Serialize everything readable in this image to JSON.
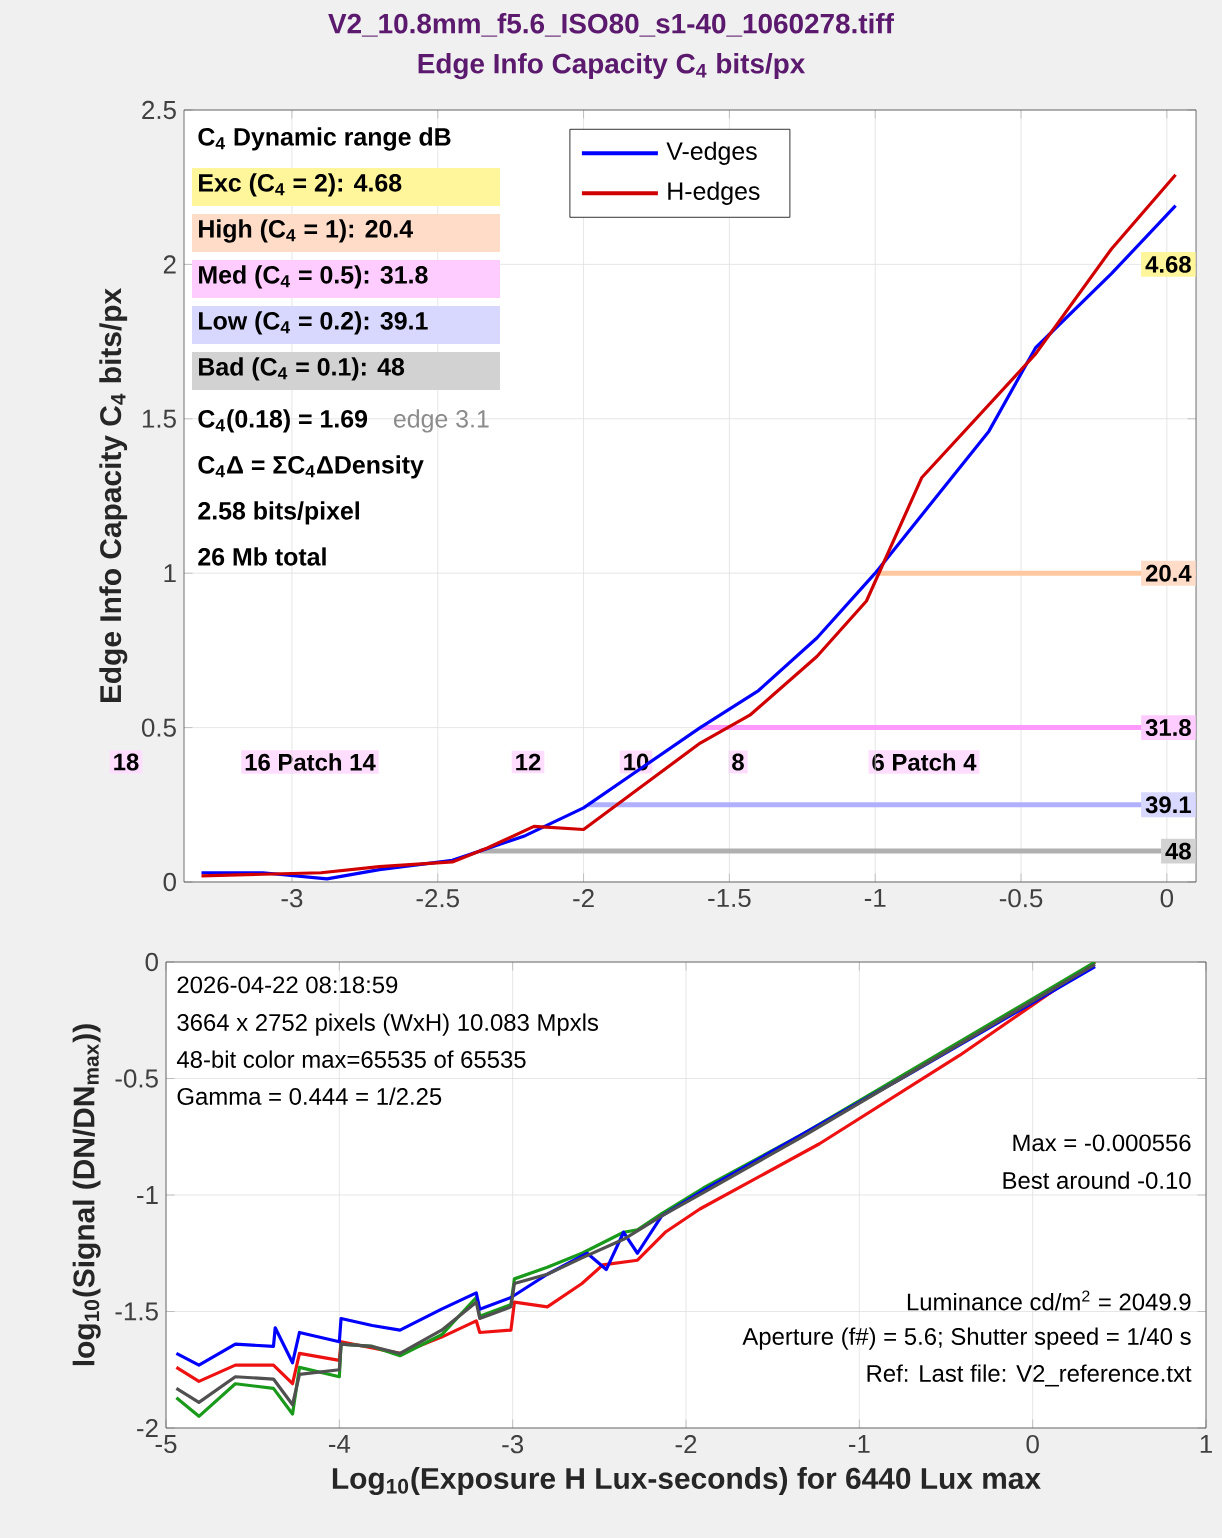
{
  "chart_data": [
    {
      "type": "line",
      "title": "V2_10.8mm_f5.6_ISO80_s1-40_1060278.tiff",
      "subtitle": "Edge Info Capacity C$_{4}$ bits/px",
      "ylabel": "Edge Info Capacity C$_{4}$ bits/px",
      "xlim": [
        -3.37,
        0.1
      ],
      "ylim": [
        0,
        2.5
      ],
      "xticks": [
        -3,
        -2.5,
        -2,
        -1.5,
        -1,
        -0.5,
        0
      ],
      "yticks": [
        0,
        0.5,
        1,
        1.5,
        2,
        2.5
      ],
      "grid": true,
      "legend": "top",
      "series": [
        {
          "name": "V-edges",
          "color": "#0000ff",
          "x": [
            -3.31,
            -3.1,
            -2.88,
            -2.7,
            -2.45,
            -2.2,
            -2.0,
            -1.8,
            -1.6,
            -1.4,
            -1.2,
            -1.0,
            -0.61,
            -0.45,
            -0.19,
            0.03
          ],
          "values": [
            0.03,
            0.03,
            0.01,
            0.04,
            0.07,
            0.15,
            0.24,
            0.37,
            0.5,
            0.62,
            0.79,
            1.0,
            1.46,
            1.73,
            1.97,
            2.19
          ]
        },
        {
          "name": "H-edges",
          "color": "#d00000",
          "x": [
            -3.31,
            -3.1,
            -2.9,
            -2.7,
            -2.45,
            -2.33,
            -2.17,
            -2.0,
            -1.8,
            -1.6,
            -1.43,
            -1.2,
            -1.03,
            -0.84,
            -0.45,
            -0.19,
            0.03
          ],
          "values": [
            0.02,
            0.025,
            0.03,
            0.05,
            0.065,
            0.11,
            0.18,
            0.17,
            0.31,
            0.45,
            0.54,
            0.73,
            0.91,
            1.31,
            1.71,
            2.05,
            2.29
          ]
        }
      ],
      "ref_lines": [
        {
          "axis": "y",
          "value": 1,
          "color": "#ffc8a0"
        },
        {
          "axis": "y",
          "value": 0.5,
          "color": "#ff99ff"
        },
        {
          "axis": "y",
          "value": 0.25,
          "color": "#b0b0ff"
        },
        {
          "axis": "y",
          "value": 0.1,
          "color": "#b0b0b0"
        }
      ],
      "annotations": [
        "C$_{4}$ Dynamic range dB",
        "Exc  (C$_{4}$ = 2):   4.68",
        "High (C$_{4}$ = 1):   20.4",
        "Med  (C$_{4}$ = 0.5):  31.8",
        "Low  (C$_{4}$ = 0.2):  39.1",
        "Bad  (C$_{4}$ = 0.1):   48",
        "C$_{4}$(0.18) = 1.69",
        "edge 3.1",
        "C$_{4}$Δ = ΣC$_{4}$ΔDensity",
        "2.58 bits/pixel",
        "26 Mb total",
        {
          "text": "4.68",
          "y": 2
        },
        {
          "text": "20.4",
          "y": 1
        },
        {
          "text": "31.8",
          "y": 0.5
        },
        {
          "text": "39.1",
          "y": 0.25
        },
        {
          "text": "48",
          "y": 0.1
        },
        "18",
        "16 Patch 14",
        "12",
        "10",
        "8",
        "6 Patch 4"
      ]
    },
    {
      "type": "line",
      "xlabel": "Log$_{10}$(Exposure H Lux-seconds)  for 6440 Lux max",
      "ylabel": "log$_{10}$(Signal (DN/DN$_{max}$))",
      "xlim": [
        -5,
        1
      ],
      "ylim": [
        -2,
        0
      ],
      "xticks": [
        -5,
        -4,
        -3,
        -2,
        -1,
        0,
        1
      ],
      "yticks": [
        -2,
        -1.5,
        -1,
        -0.5,
        0
      ],
      "grid": true,
      "series": [
        {
          "color": "#ee1111",
          "x": [
            -4.94,
            -4.81,
            -4.6,
            -4.38,
            -4.27,
            -4.23,
            -4.0,
            -3.99,
            -3.65,
            -3.41,
            -3.21,
            -3.19,
            -3.01,
            -2.99,
            -2.8,
            -2.6,
            -2.48,
            -2.28,
            -2.12,
            -1.92,
            -1.23,
            -0.42,
            0.36
          ],
          "values": [
            -1.74,
            -1.8,
            -1.73,
            -1.73,
            -1.81,
            -1.68,
            -1.71,
            -1.63,
            -1.68,
            -1.61,
            -1.54,
            -1.59,
            -1.58,
            -1.46,
            -1.48,
            -1.38,
            -1.3,
            -1.28,
            -1.16,
            -1.06,
            -0.78,
            -0.4,
            0.0
          ]
        },
        {
          "color": "#1a9a1a",
          "x": [
            -4.94,
            -4.81,
            -4.6,
            -4.38,
            -4.27,
            -4.23,
            -4.0,
            -3.99,
            -3.81,
            -3.65,
            -3.41,
            -3.21,
            -3.19,
            -3.01,
            -2.99,
            -2.8,
            -2.6,
            -2.36,
            -2.28,
            -2.14,
            -1.9,
            -1.33,
            0.36
          ],
          "values": [
            -1.87,
            -1.95,
            -1.81,
            -1.83,
            -1.94,
            -1.74,
            -1.78,
            -1.64,
            -1.65,
            -1.69,
            -1.6,
            -1.44,
            -1.52,
            -1.47,
            -1.36,
            -1.31,
            -1.25,
            -1.16,
            -1.15,
            -1.08,
            -0.97,
            -0.74,
            0.0
          ]
        },
        {
          "color": "#0000ff",
          "x": [
            -4.94,
            -4.81,
            -4.6,
            -4.38,
            -4.37,
            -4.27,
            -4.23,
            -4.0,
            -3.99,
            -3.81,
            -3.65,
            -3.41,
            -3.21,
            -3.19,
            -3.01,
            -2.8,
            -2.57,
            -2.46,
            -2.36,
            -2.28,
            -2.14,
            -1.9,
            -1.33,
            -0.71,
            0.36
          ],
          "values": [
            -1.68,
            -1.73,
            -1.64,
            -1.65,
            -1.57,
            -1.72,
            -1.59,
            -1.63,
            -1.53,
            -1.56,
            -1.58,
            -1.49,
            -1.42,
            -1.49,
            -1.44,
            -1.34,
            -1.25,
            -1.32,
            -1.16,
            -1.25,
            -1.09,
            -0.98,
            -0.74,
            -0.48,
            -0.02
          ]
        },
        {
          "color": "#505050",
          "x": [
            -4.94,
            -4.81,
            -4.6,
            -4.38,
            -4.27,
            -4.23,
            -4.0,
            -3.99,
            -3.81,
            -3.65,
            -3.41,
            -3.21,
            -3.19,
            -3.01,
            -2.99,
            -2.8,
            -2.6,
            -2.36,
            -2.14,
            -1.9,
            -1.33,
            0.36
          ],
          "values": [
            -1.83,
            -1.89,
            -1.78,
            -1.79,
            -1.9,
            -1.77,
            -1.75,
            -1.64,
            -1.65,
            -1.68,
            -1.58,
            -1.46,
            -1.53,
            -1.48,
            -1.38,
            -1.34,
            -1.27,
            -1.19,
            -1.09,
            -0.99,
            -0.75,
            -0.01
          ]
        }
      ],
      "annotations": [
        "2026-04-22 08:18:59",
        "3664 x 2752 pixels (WxH)   10.083 Mpxls",
        "48-bit color  max=65535 of 65535",
        "Gamma = 0.444 = 1/2.25",
        "Max = -0.000556",
        "Best around -0.10",
        "Luminance cd/m$^{2}$ = 2049.9",
        "Aperture (f#) = 5.6;  Shutter speed = 1/40 s",
        "Ref: Last file: V2_reference.txt"
      ]
    }
  ]
}
